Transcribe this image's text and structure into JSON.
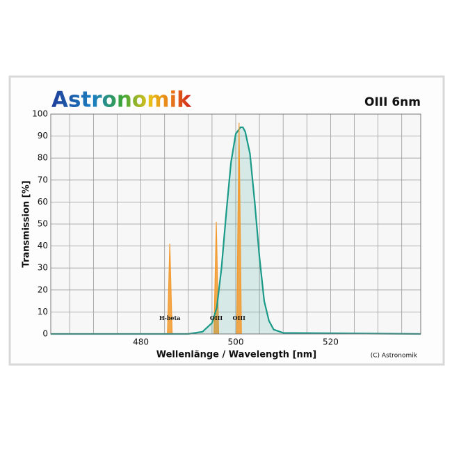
{
  "chart_data": {
    "type": "line",
    "brand": "Astronomik",
    "title": "OIII 6nm",
    "xlabel": "Wellenlänge / Wavelength [nm]",
    "ylabel": "Transmission [%]",
    "credit": "(C) Astronomik",
    "xlim": [
      461,
      539
    ],
    "ylim": [
      0,
      100
    ],
    "xticks": [
      480,
      500,
      520
    ],
    "x_minor_ticks": [
      465,
      470,
      475,
      485,
      490,
      495,
      505,
      510,
      515,
      525,
      530,
      535
    ],
    "yticks": [
      0,
      10,
      20,
      30,
      40,
      50,
      60,
      70,
      80,
      90,
      100
    ],
    "grid": true,
    "series": [
      {
        "color": "#f29a2e",
        "fill": true,
        "x": [
          485.6,
          486.1,
          486.6
        ],
        "values": [
          0,
          41,
          0
        ]
      },
      {
        "color": "#f29a2e",
        "fill": true,
        "x": [
          495.4,
          495.9,
          496.4
        ],
        "values": [
          0,
          51,
          0
        ]
      },
      {
        "color": "#1a9a88",
        "fill": true,
        "x": [
          461,
          490,
          493,
          495,
          496,
          497,
          498,
          499,
          500,
          501,
          501.5,
          502,
          503,
          504,
          505,
          506,
          507,
          508,
          510,
          539
        ],
        "values": [
          0,
          0,
          1,
          5,
          12,
          30,
          55,
          78,
          91,
          94,
          94,
          92,
          82,
          60,
          35,
          15,
          6,
          2,
          0.5,
          0
        ]
      },
      {
        "color": "#f29a2e",
        "fill": true,
        "x": [
          500.2,
          500.7,
          501.2
        ],
        "values": [
          0,
          96,
          0
        ]
      }
    ],
    "annotations": [
      {
        "text": "H-beta",
        "x": 486.1,
        "y": 7
      },
      {
        "text": "OIII",
        "x": 495.9,
        "y": 7
      },
      {
        "text": "OIII",
        "x": 500.7,
        "y": 7
      }
    ]
  }
}
